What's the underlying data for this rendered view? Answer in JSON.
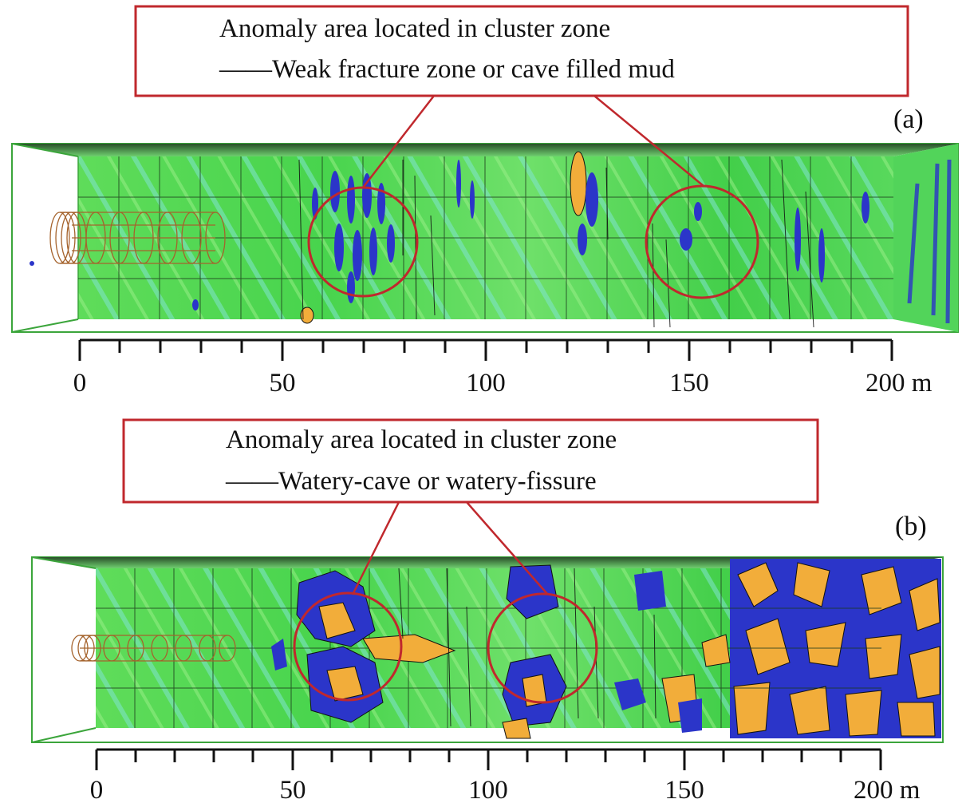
{
  "panels": [
    {
      "id": "a",
      "label": "(a)",
      "callout": {
        "line1": "Anomaly area located in cluster zone",
        "line2": "——Weak fracture zone or cave filled mud"
      },
      "axis": {
        "start": 0,
        "end": 200,
        "major_step": 50,
        "minor_step": 10,
        "tick_labels": [
          "0",
          "50",
          "100",
          "150",
          "200 m"
        ]
      },
      "circled_zones": [
        {
          "center": 70,
          "radius": 13
        },
        {
          "center": 153,
          "radius": 13
        }
      ]
    },
    {
      "id": "b",
      "label": "(b)",
      "callout": {
        "line1": "Anomaly area located in cluster zone",
        "line2": "——Watery-cave or watery-fissure"
      },
      "axis": {
        "start": 0,
        "end": 200,
        "major_step": 50,
        "minor_step": 10,
        "tick_labels": [
          "0",
          "50",
          "100",
          "150",
          "200 m"
        ]
      },
      "circled_zones": [
        {
          "center": 66,
          "radius": 12
        },
        {
          "center": 114,
          "radius": 13
        }
      ]
    }
  ],
  "colors": {
    "background_rock": "#4ad74a",
    "low_anomaly": "#2b35c9",
    "high_anomaly": "#f2ad3a",
    "callout_border": "#c0282d",
    "grid": "#1c3a1c",
    "tunnel": "#a5632d"
  }
}
